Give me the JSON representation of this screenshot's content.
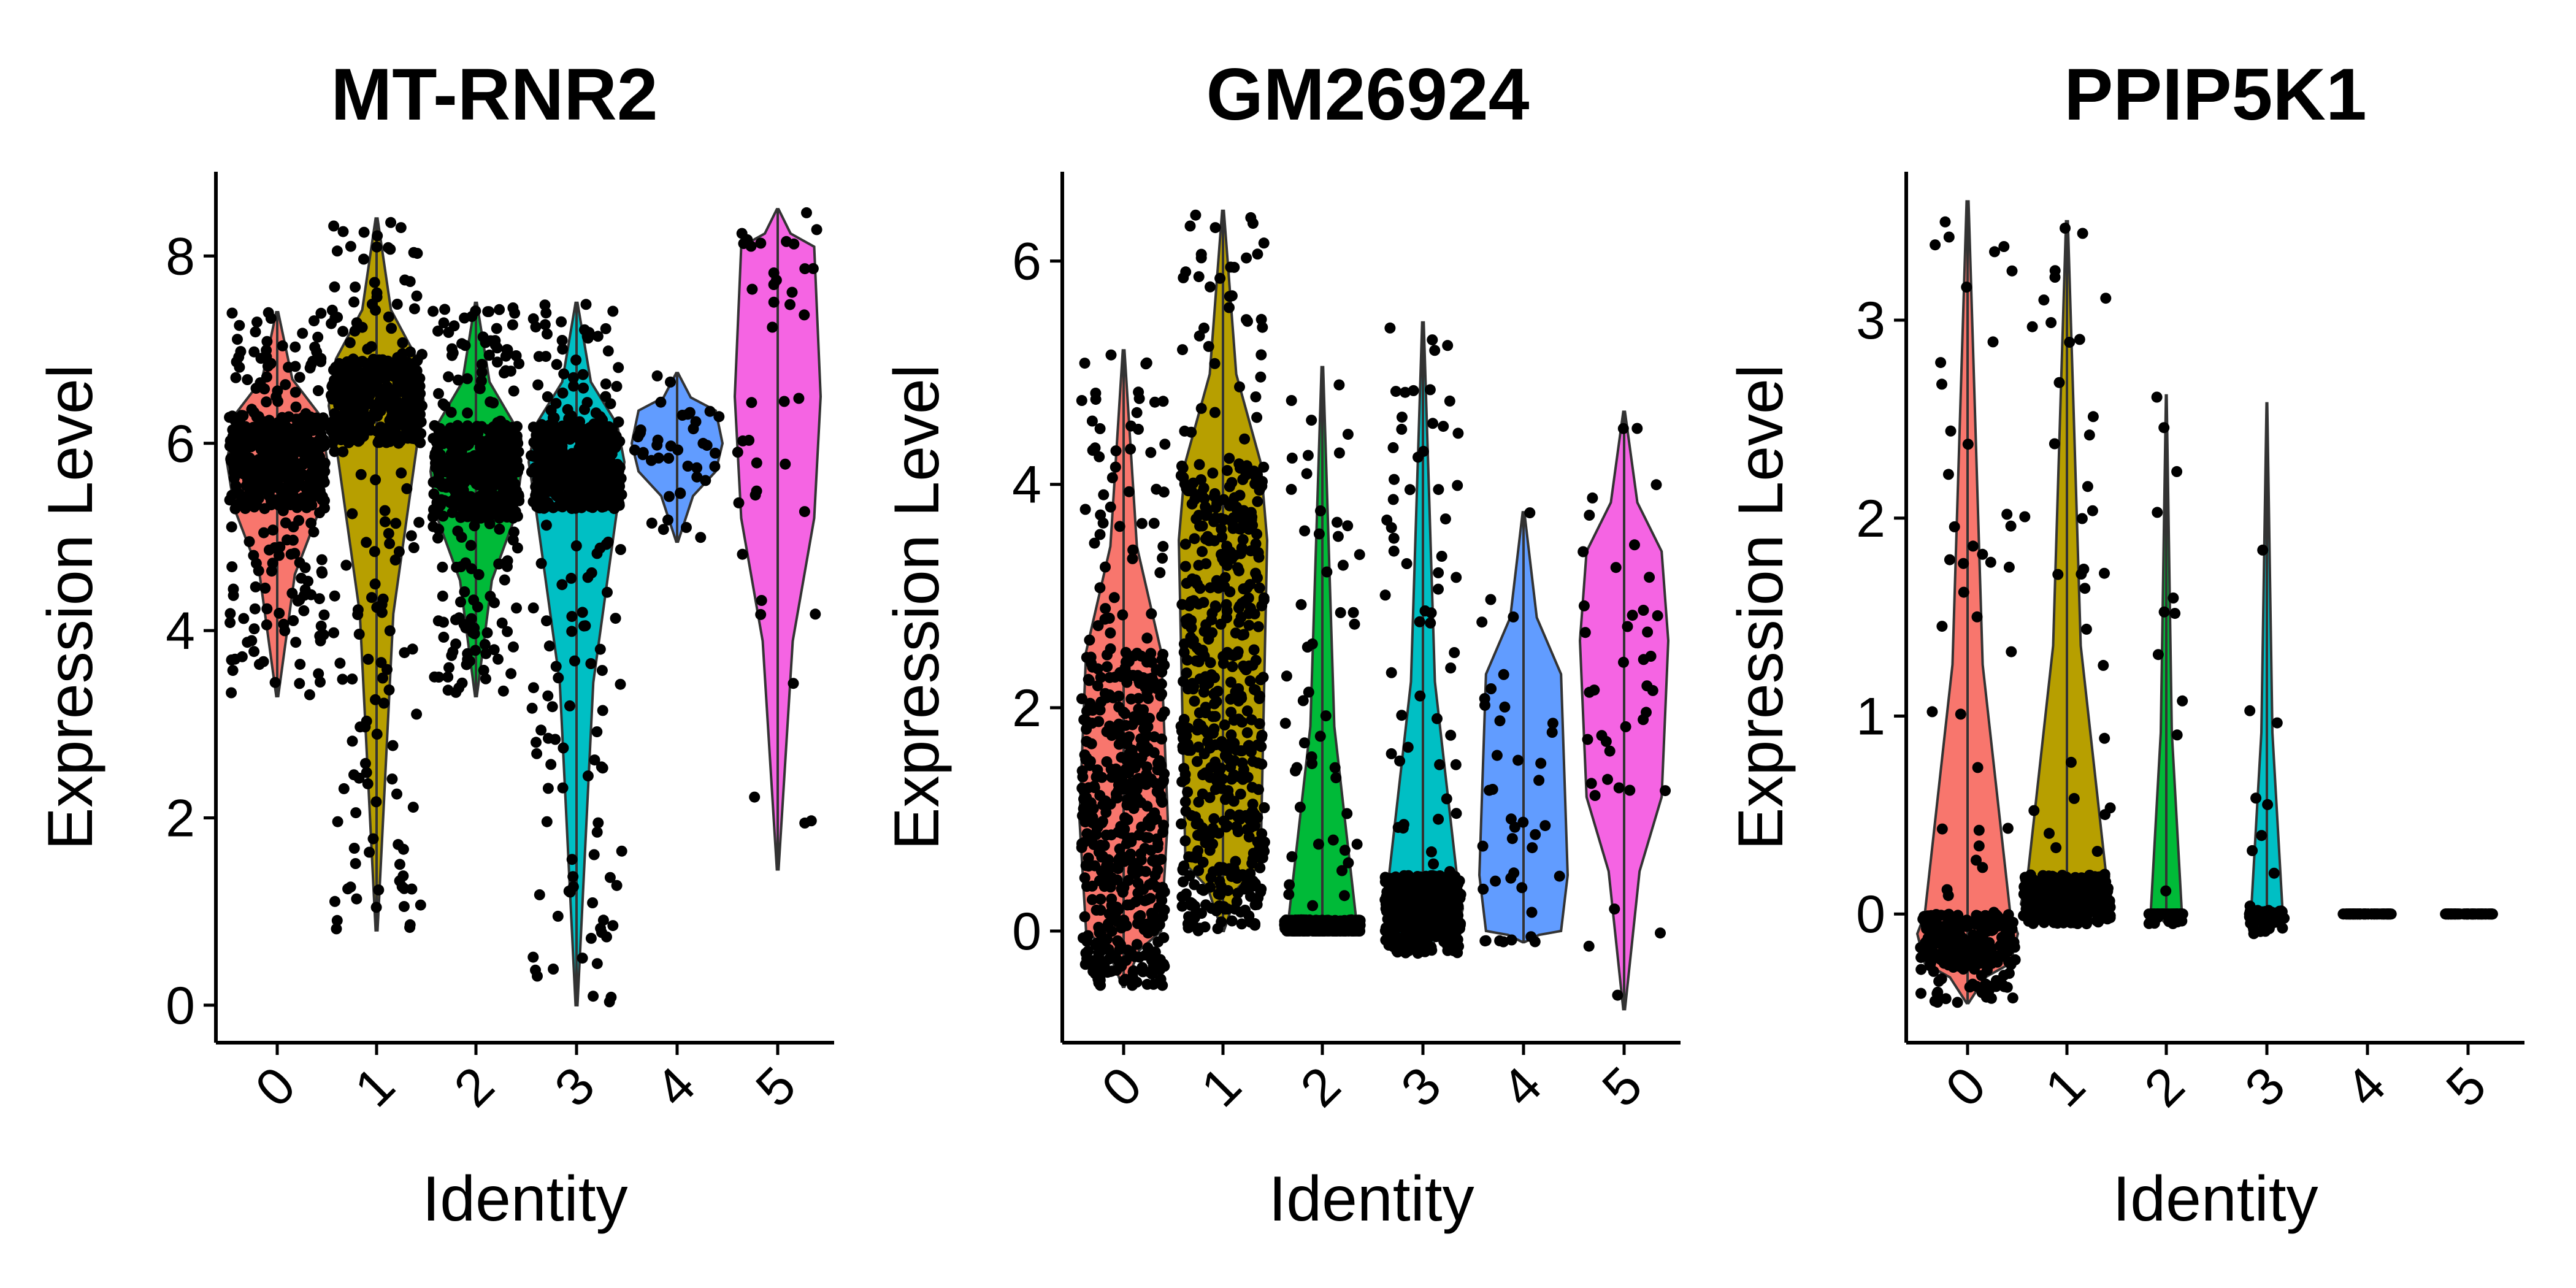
{
  "chart_data": [
    {
      "type": "violin",
      "title": "MT-RNR2",
      "xlabel": "Identity",
      "ylabel": "Expression Level",
      "categories": [
        "0",
        "1",
        "2",
        "3",
        "4",
        "5"
      ],
      "ylim": [
        -0.4,
        8.9
      ],
      "yticks": [
        0,
        2,
        4,
        6,
        8
      ],
      "colors": [
        "#F8766D",
        "#B79F00",
        "#00BA38",
        "#00BFC4",
        "#619CFF",
        "#F564E3"
      ],
      "violins": [
        {
          "category": "0",
          "min": 3.3,
          "max": 7.4,
          "median": 5.8,
          "q1": 5.3,
          "q3": 6.3
        },
        {
          "category": "1",
          "min": 0.8,
          "max": 8.4,
          "median": 6.4,
          "q1": 6.0,
          "q3": 6.9
        },
        {
          "category": "2",
          "min": 3.3,
          "max": 7.5,
          "median": 5.7,
          "q1": 5.2,
          "q3": 6.2
        },
        {
          "category": "3",
          "min": 0.0,
          "max": 7.5,
          "median": 5.8,
          "q1": 5.3,
          "q3": 6.2
        },
        {
          "category": "4",
          "min": 4.95,
          "max": 6.75,
          "median": 6.0,
          "q1": 5.7,
          "q3": 6.35
        },
        {
          "category": "5",
          "min": 1.45,
          "max": 8.5,
          "median": 6.5,
          "q1": 5.2,
          "q3": 8.1
        }
      ]
    },
    {
      "type": "violin",
      "title": "GM26924",
      "xlabel": "Identity",
      "ylabel": "Expression Level",
      "categories": [
        "0",
        "1",
        "2",
        "3",
        "4",
        "5"
      ],
      "ylim": [
        -1.0,
        6.8
      ],
      "yticks": [
        0,
        2,
        4,
        6
      ],
      "colors": [
        "#F8766D",
        "#B79F00",
        "#00BA38",
        "#00BFC4",
        "#619CFF",
        "#F564E3"
      ],
      "violins": [
        {
          "category": "0",
          "min": -0.5,
          "max": 5.2,
          "median": 1.0,
          "q1": 0.0,
          "q3": 2.5
        },
        {
          "category": "1",
          "min": 0.0,
          "max": 6.45,
          "median": 3.5,
          "q1": 0.6,
          "q3": 4.2
        },
        {
          "category": "2",
          "min": 0.0,
          "max": 5.05,
          "median": 0.0,
          "q1": 0.0,
          "q3": 0.1
        },
        {
          "category": "3",
          "min": -0.2,
          "max": 5.45,
          "median": 0.2,
          "q1": 0.0,
          "q3": 0.5
        },
        {
          "category": "4",
          "min": -0.1,
          "max": 3.75,
          "median": 0.5,
          "q1": 0.0,
          "q3": 2.3
        },
        {
          "category": "5",
          "min": -0.7,
          "max": 4.65,
          "median": 2.6,
          "q1": 1.2,
          "q3": 3.4
        }
      ]
    },
    {
      "type": "violin",
      "title": "PPIP5K1",
      "xlabel": "Identity",
      "ylabel": "Expression Level",
      "categories": [
        "0",
        "1",
        "2",
        "3",
        "4",
        "5"
      ],
      "ylim": [
        -0.65,
        3.75
      ],
      "yticks": [
        0,
        1,
        2,
        3
      ],
      "colors": [
        "#F8766D",
        "#B79F00",
        "#00BA38",
        "#00BFC4",
        "#619CFF",
        "#F564E3"
      ],
      "violins": [
        {
          "category": "0",
          "min": -0.45,
          "max": 3.6,
          "median": -0.1,
          "q1": -0.25,
          "q3": 0.0
        },
        {
          "category": "1",
          "min": -0.05,
          "max": 3.5,
          "median": 0.05,
          "q1": 0.0,
          "q3": 0.2
        },
        {
          "category": "2",
          "min": -0.05,
          "max": 2.62,
          "median": 0.0,
          "q1": 0.0,
          "q3": 0.0
        },
        {
          "category": "3",
          "min": -0.1,
          "max": 2.58,
          "median": 0.0,
          "q1": -0.05,
          "q3": 0.02
        },
        {
          "category": "4",
          "min": 0.0,
          "max": 0.0,
          "median": 0.0,
          "q1": 0.0,
          "q3": 0.0
        },
        {
          "category": "5",
          "min": 0.0,
          "max": 0.0,
          "median": 0.0,
          "q1": 0.0,
          "q3": 0.0
        }
      ]
    }
  ]
}
